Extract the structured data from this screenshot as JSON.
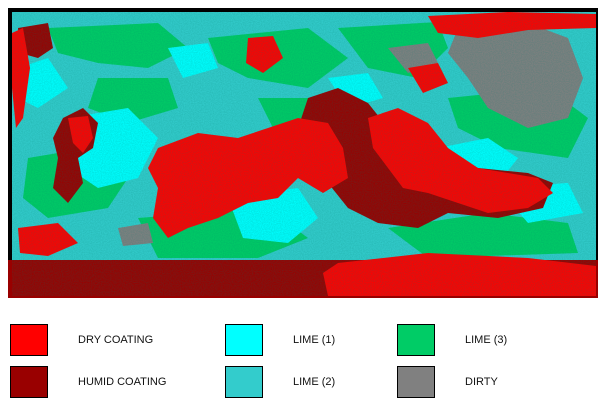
{
  "colors": {
    "dry_coating": "#ff0000",
    "humid_coating": "#990000",
    "lime_1": "#00ffff",
    "lime_2": "#33cccc",
    "lime_3": "#00cc66",
    "dirty": "#808080",
    "background": "#000000"
  },
  "legend": {
    "items": [
      {
        "key": "dry_coating",
        "label": "DRY COATING",
        "color": "#ff0000"
      },
      {
        "key": "lime_1",
        "label": "LIME (1)",
        "color": "#00ffff"
      },
      {
        "key": "lime_3",
        "label": "LIME (3)",
        "color": "#00cc66"
      },
      {
        "key": "humid_coating",
        "label": "HUMID COATING",
        "color": "#990000"
      },
      {
        "key": "lime_2",
        "label": "LIME (2)",
        "color": "#33cccc"
      },
      {
        "key": "dirty",
        "label": "DIRTY",
        "color": "#808080"
      }
    ]
  }
}
